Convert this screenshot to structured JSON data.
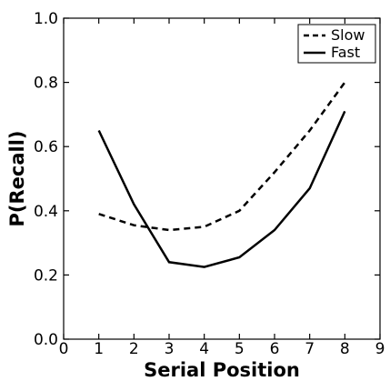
{
  "chart_data": {
    "type": "line",
    "title": "",
    "xlabel": "Serial Position",
    "ylabel": "P(Recall)",
    "xlim": [
      0,
      9
    ],
    "ylim": [
      0.0,
      1.0
    ],
    "xticks": [
      "0",
      "1",
      "2",
      "3",
      "4",
      "5",
      "6",
      "7",
      "8",
      "9"
    ],
    "yticks": [
      "0.0",
      "0.2",
      "0.4",
      "0.6",
      "0.8",
      "1.0"
    ],
    "grid": false,
    "legend_position": "top-right",
    "series": [
      {
        "name": "Slow",
        "line_style": "dashed",
        "color": "#000000",
        "x": [
          1,
          2,
          3,
          4,
          5,
          6,
          7,
          8
        ],
        "y": [
          0.39,
          0.355,
          0.34,
          0.35,
          0.4,
          0.52,
          0.65,
          0.8
        ]
      },
      {
        "name": "Fast",
        "line_style": "solid",
        "color": "#000000",
        "x": [
          1,
          2,
          3,
          4,
          5,
          6,
          7,
          8
        ],
        "y": [
          0.65,
          0.42,
          0.24,
          0.225,
          0.255,
          0.34,
          0.47,
          0.71
        ]
      }
    ]
  }
}
